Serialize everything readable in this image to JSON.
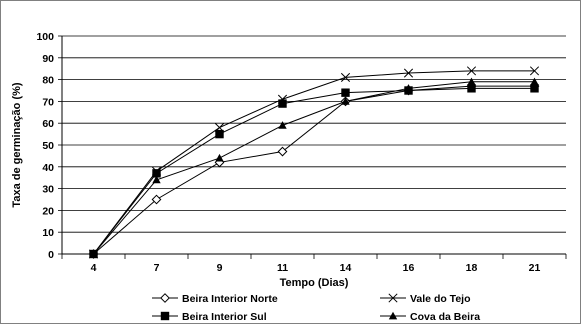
{
  "chart_data": {
    "type": "line",
    "categories": [
      "4",
      "7",
      "9",
      "11",
      "14",
      "16",
      "18",
      "21"
    ],
    "xlabel": "Tempo (Dias)",
    "ylabel": "Taxa de germinação (%)",
    "ylim": [
      0,
      100
    ],
    "yticks": [
      0,
      10,
      20,
      30,
      40,
      50,
      60,
      70,
      80,
      90,
      100
    ],
    "grid": "horizontal",
    "legend_position": "bottom",
    "series": [
      {
        "name": "Beira Interior Norte",
        "marker": "diamond-open",
        "values": [
          0,
          25,
          42,
          47,
          70,
          75,
          77,
          77
        ]
      },
      {
        "name": "Vale do Tejo",
        "marker": "x",
        "values": [
          0,
          38,
          58,
          71,
          81,
          83,
          84,
          84
        ]
      },
      {
        "name": "Beira Interior Sul",
        "marker": "square-filled",
        "values": [
          0,
          37,
          55,
          69,
          74,
          75,
          76,
          76
        ]
      },
      {
        "name": "Cova da Beira",
        "marker": "triangle-filled",
        "values": [
          0,
          34,
          44,
          59,
          70,
          76,
          79,
          79
        ]
      }
    ]
  }
}
